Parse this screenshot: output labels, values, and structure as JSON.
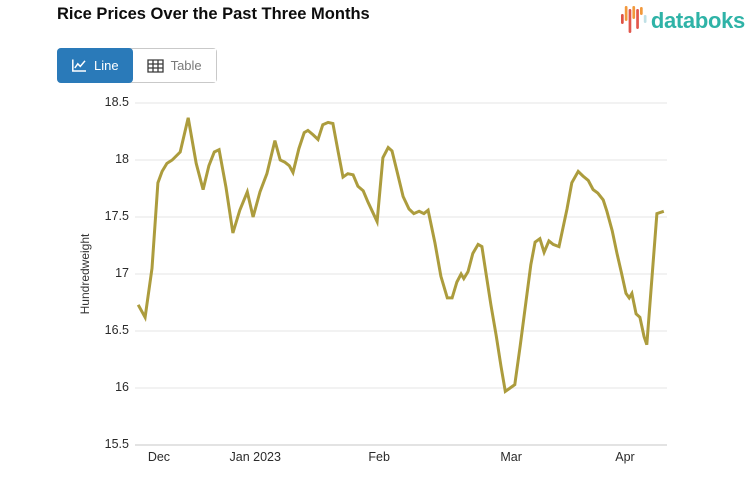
{
  "header": {
    "title": "Rice Prices Over the Past Three Months",
    "logo_text": "databoks",
    "logo_text_color": "#2fb3a7",
    "logo_bars": [
      {
        "x": 0,
        "y": 8,
        "h": 10,
        "color": "#df5244"
      },
      {
        "x": 3.8,
        "y": 0,
        "h": 15,
        "color": "#f2993c"
      },
      {
        "x": 7.6,
        "y": 3,
        "h": 24,
        "color": "#e2574c"
      },
      {
        "x": 11.4,
        "y": 0,
        "h": 13,
        "color": "#f2993c"
      },
      {
        "x": 15.2,
        "y": 3,
        "h": 20,
        "color": "#e2574c"
      },
      {
        "x": 19,
        "y": 1,
        "h": 8,
        "color": "#f2993c"
      },
      {
        "x": 22.8,
        "y": 9,
        "h": 8,
        "color": "#bfe0e6"
      }
    ]
  },
  "toolbar": {
    "line_label": "Line",
    "table_label": "Table",
    "active_color": "#2a7ab9"
  },
  "chart_data": {
    "type": "line",
    "title": "Rice Prices Over the Past Three Months",
    "xlabel": "",
    "ylabel": "Hundredweight",
    "ylim": [
      15.5,
      18.5
    ],
    "y_ticks": [
      15.5,
      16,
      16.5,
      17,
      17.5,
      18,
      18.5
    ],
    "x_ticks": [
      {
        "label": "Dec",
        "x": 0.045
      },
      {
        "label": "Jan 2023",
        "x": 0.226
      },
      {
        "label": "Feb",
        "x": 0.459
      },
      {
        "label": "Mar",
        "x": 0.707
      },
      {
        "label": "Apr",
        "x": 0.921
      }
    ],
    "grid": true,
    "legend": "none",
    "line_color": "#ac9c3d",
    "grid_color": "#e4e4e4",
    "axis_color": "#c7c7c7",
    "points": [
      [
        0.006,
        16.73
      ],
      [
        0.019,
        16.62
      ],
      [
        0.032,
        17.05
      ],
      [
        0.043,
        17.8
      ],
      [
        0.051,
        17.9
      ],
      [
        0.06,
        17.97
      ],
      [
        0.07,
        18.0
      ],
      [
        0.085,
        18.07
      ],
      [
        0.1,
        18.37
      ],
      [
        0.115,
        17.97
      ],
      [
        0.128,
        17.74
      ],
      [
        0.139,
        17.95
      ],
      [
        0.149,
        18.07
      ],
      [
        0.158,
        18.09
      ],
      [
        0.171,
        17.76
      ],
      [
        0.184,
        17.36
      ],
      [
        0.197,
        17.56
      ],
      [
        0.211,
        17.72
      ],
      [
        0.222,
        17.5
      ],
      [
        0.235,
        17.72
      ],
      [
        0.248,
        17.88
      ],
      [
        0.263,
        18.17
      ],
      [
        0.273,
        18.0
      ],
      [
        0.282,
        17.98
      ],
      [
        0.29,
        17.95
      ],
      [
        0.297,
        17.89
      ],
      [
        0.308,
        18.1
      ],
      [
        0.318,
        18.24
      ],
      [
        0.325,
        18.26
      ],
      [
        0.335,
        18.22
      ],
      [
        0.344,
        18.18
      ],
      [
        0.353,
        18.31
      ],
      [
        0.363,
        18.33
      ],
      [
        0.372,
        18.32
      ],
      [
        0.382,
        18.07
      ],
      [
        0.391,
        17.85
      ],
      [
        0.4,
        17.88
      ],
      [
        0.41,
        17.87
      ],
      [
        0.419,
        17.77
      ],
      [
        0.429,
        17.73
      ],
      [
        0.438,
        17.63
      ],
      [
        0.446,
        17.55
      ],
      [
        0.455,
        17.46
      ],
      [
        0.466,
        18.02
      ],
      [
        0.476,
        18.11
      ],
      [
        0.483,
        18.08
      ],
      [
        0.493,
        17.89
      ],
      [
        0.504,
        17.68
      ],
      [
        0.515,
        17.57
      ],
      [
        0.524,
        17.53
      ],
      [
        0.534,
        17.55
      ],
      [
        0.543,
        17.53
      ],
      [
        0.551,
        17.56
      ],
      [
        0.564,
        17.27
      ],
      [
        0.575,
        16.98
      ],
      [
        0.587,
        16.79
      ],
      [
        0.596,
        16.79
      ],
      [
        0.605,
        16.93
      ],
      [
        0.613,
        17.0
      ],
      [
        0.618,
        16.96
      ],
      [
        0.626,
        17.02
      ],
      [
        0.635,
        17.18
      ],
      [
        0.645,
        17.26
      ],
      [
        0.652,
        17.24
      ],
      [
        0.66,
        17.0
      ],
      [
        0.669,
        16.73
      ],
      [
        0.679,
        16.46
      ],
      [
        0.688,
        16.19
      ],
      [
        0.696,
        15.97
      ],
      [
        0.705,
        16.0
      ],
      [
        0.714,
        16.03
      ],
      [
        0.724,
        16.37
      ],
      [
        0.735,
        16.76
      ],
      [
        0.744,
        17.08
      ],
      [
        0.752,
        17.28
      ],
      [
        0.761,
        17.31
      ],
      [
        0.769,
        17.19
      ],
      [
        0.778,
        17.29
      ],
      [
        0.786,
        17.26
      ],
      [
        0.797,
        17.24
      ],
      [
        0.812,
        17.57
      ],
      [
        0.821,
        17.8
      ],
      [
        0.833,
        17.9
      ],
      [
        0.842,
        17.86
      ],
      [
        0.852,
        17.82
      ],
      [
        0.861,
        17.74
      ],
      [
        0.87,
        17.71
      ],
      [
        0.88,
        17.65
      ],
      [
        0.887,
        17.55
      ],
      [
        0.897,
        17.38
      ],
      [
        0.906,
        17.18
      ],
      [
        0.914,
        17.02
      ],
      [
        0.923,
        16.83
      ],
      [
        0.929,
        16.79
      ],
      [
        0.934,
        16.83
      ],
      [
        0.942,
        16.65
      ],
      [
        0.949,
        16.62
      ],
      [
        0.957,
        16.45
      ],
      [
        0.962,
        16.38
      ],
      [
        0.981,
        17.53
      ],
      [
        0.994,
        17.55
      ]
    ]
  }
}
